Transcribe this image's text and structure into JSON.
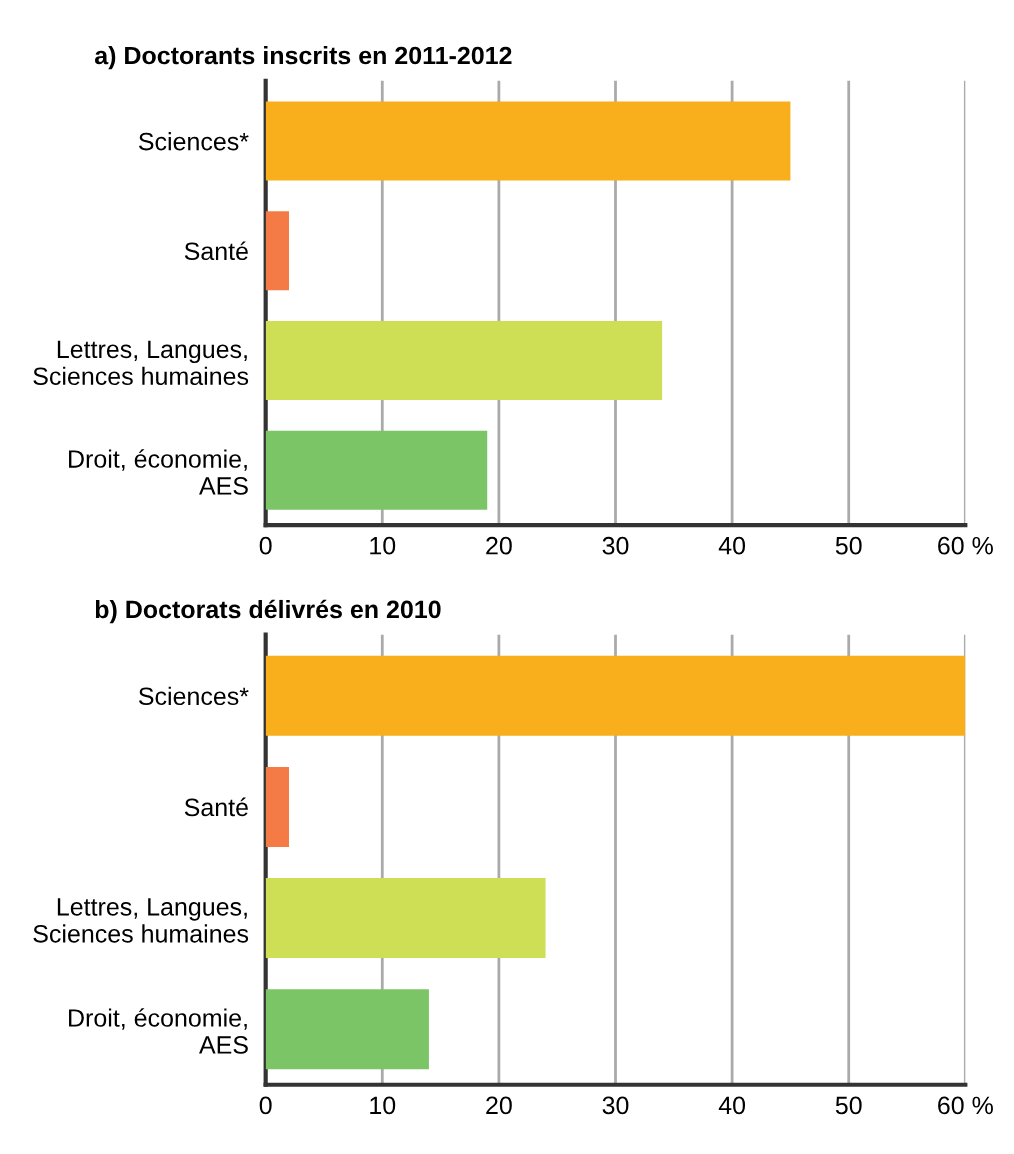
{
  "chart_data": [
    {
      "type": "bar",
      "orientation": "horizontal",
      "title": "a) Doctorants inscrits en 2011-2012",
      "categories": [
        "Sciences*",
        "Santé",
        "Lettres, Langues,\nSciences humaines",
        "Droit, économie,\nAES"
      ],
      "values": [
        45,
        2,
        34,
        19
      ],
      "colors": [
        "#f9ae1b",
        "#f47b45",
        "#cede55",
        "#7cc566"
      ],
      "xlim": [
        0,
        60
      ],
      "xticks": [
        0,
        10,
        20,
        30,
        40,
        50,
        {
          "value": 60,
          "label": "60 %"
        }
      ],
      "grid": "x"
    },
    {
      "type": "bar",
      "orientation": "horizontal",
      "title": "b) Doctorats délivrés en 2010",
      "categories": [
        "Sciences*",
        "Santé",
        "Lettres, Langues,\nSciences humaines",
        "Droit, économie,\nAES"
      ],
      "values": [
        60,
        2,
        24,
        14
      ],
      "colors": [
        "#f9ae1b",
        "#f47b45",
        "#cede55",
        "#7cc566"
      ],
      "xlim": [
        0,
        60
      ],
      "xticks": [
        0,
        10,
        20,
        30,
        40,
        50,
        {
          "value": 60,
          "label": "60 %"
        }
      ],
      "grid": "x"
    }
  ]
}
